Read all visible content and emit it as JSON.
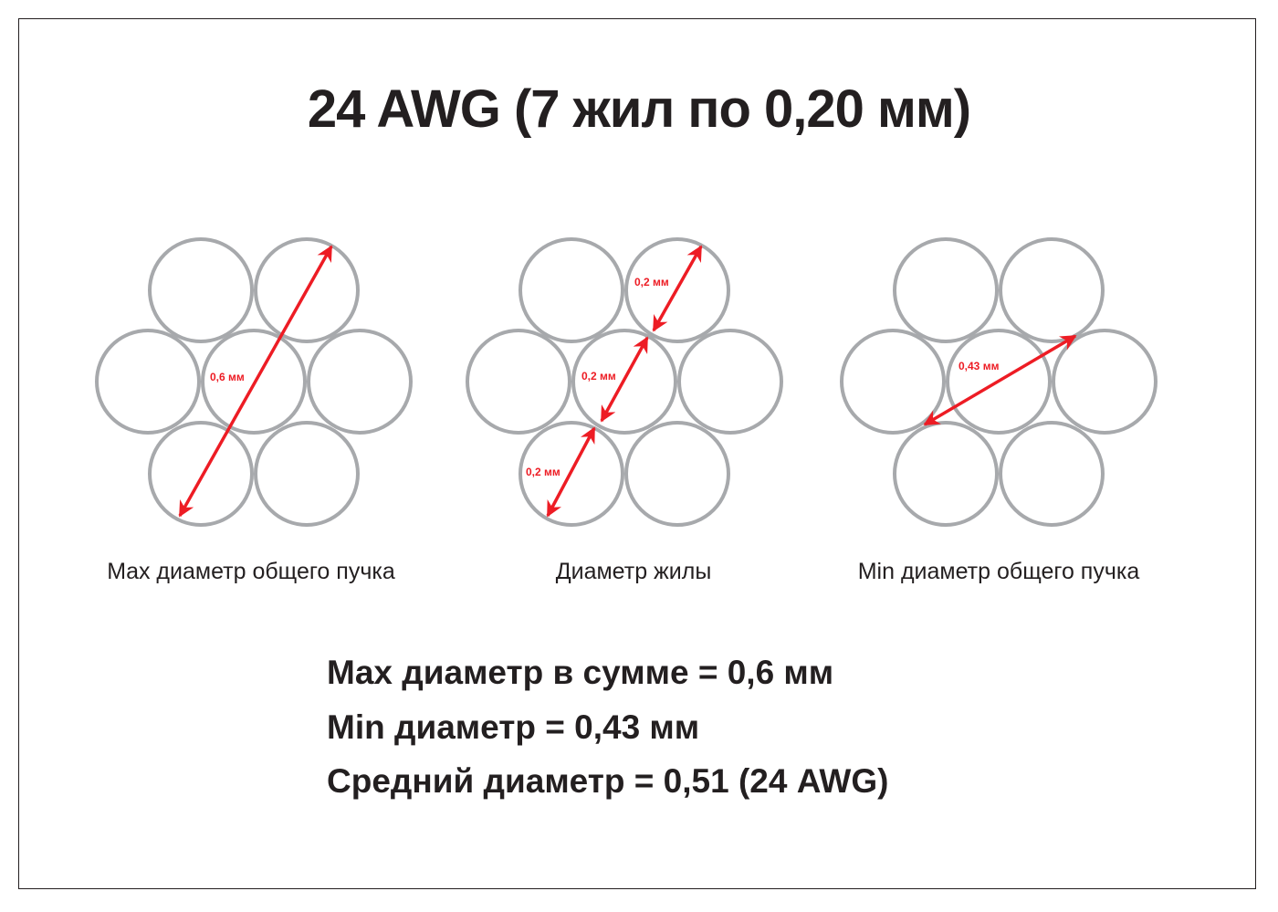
{
  "title": "24 AWG (7 жил по 0,20 мм)",
  "diagrams": [
    {
      "caption": "Max диаметр общего пучка",
      "labels": [
        "0,6 мм"
      ]
    },
    {
      "caption": "Диаметр жилы",
      "labels": [
        "0,2 мм",
        "0,2 мм",
        "0,2 мм"
      ]
    },
    {
      "caption": "Min диаметр общего пучка",
      "labels": [
        "0,43 мм"
      ]
    }
  ],
  "summary": [
    "Max диаметр в сумме = 0,6 мм",
    "Min диаметр = 0,43 мм",
    "Средний диаметр = 0,51 (24 AWG)"
  ],
  "colors": {
    "circle": "#a7a9ac",
    "arrow": "#ed1c24",
    "text": "#231f20"
  }
}
